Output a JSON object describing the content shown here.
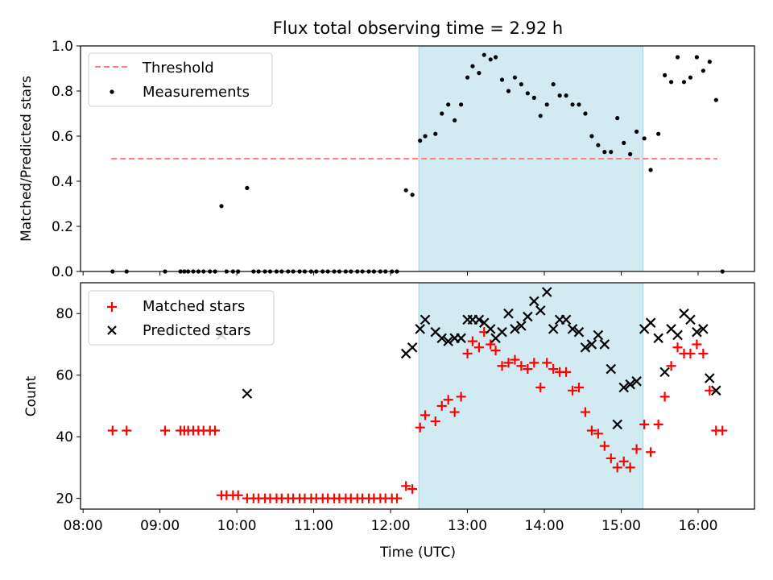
{
  "figure": {
    "title": "Flux total observing time = 2.92 h"
  },
  "colors": {
    "highlight": "#add8e6",
    "threshold": "#ff7f7f",
    "matched": "#ff0000",
    "predicted": "#000000",
    "measurement": "#000000"
  },
  "chart_data": [
    {
      "type": "scatter",
      "title": "Flux total observing time = 2.92 h",
      "ylabel": "Matched/Predicted stars",
      "xlabel": "",
      "ylim": [
        0,
        1.0
      ],
      "y_ticks": [
        "0.0",
        "0.2",
        "0.4",
        "0.6",
        "0.8",
        "1.0"
      ],
      "y_tick_values": [
        0,
        0.2,
        0.4,
        0.6,
        0.8,
        1.0
      ],
      "x_range": [
        "07:58",
        "16:44"
      ],
      "x_ticks": [
        "08:00",
        "09:00",
        "10:00",
        "11:00",
        "12:00",
        "13:00",
        "14:00",
        "15:00",
        "16:00"
      ],
      "highlight_span": [
        "12:22",
        "15:17"
      ],
      "legend": {
        "placement": "upper-left",
        "entries": [
          "Threshold",
          "Measurements"
        ]
      },
      "threshold": {
        "name": "Threshold",
        "y": 0.5,
        "x_from": "08:22",
        "x_to": "16:15"
      },
      "series": [
        {
          "name": "Measurements",
          "points": [
            [
              "08:23",
              0.0
            ],
            [
              "08:34",
              0.0
            ],
            [
              "09:04",
              0.0
            ],
            [
              "09:16",
              0.0
            ],
            [
              "09:19",
              0.0
            ],
            [
              "09:22",
              0.0
            ],
            [
              "09:26",
              0.0
            ],
            [
              "09:30",
              0.0
            ],
            [
              "09:34",
              0.0
            ],
            [
              "09:39",
              0.0
            ],
            [
              "09:43",
              0.0
            ],
            [
              "09:48",
              0.29
            ],
            [
              "09:52",
              0.0
            ],
            [
              "09:57",
              0.0
            ],
            [
              "10:01",
              0.0
            ],
            [
              "10:08",
              0.37
            ],
            [
              "10:13",
              0.0
            ],
            [
              "10:17",
              0.0
            ],
            [
              "10:22",
              0.0
            ],
            [
              "10:26",
              0.0
            ],
            [
              "10:31",
              0.0
            ],
            [
              "10:35",
              0.0
            ],
            [
              "10:40",
              0.0
            ],
            [
              "10:44",
              0.0
            ],
            [
              "10:49",
              0.0
            ],
            [
              "10:53",
              0.0
            ],
            [
              "10:58",
              0.0
            ],
            [
              "11:02",
              0.0
            ],
            [
              "11:07",
              0.0
            ],
            [
              "11:11",
              0.0
            ],
            [
              "11:16",
              0.0
            ],
            [
              "11:20",
              0.0
            ],
            [
              "11:25",
              0.0
            ],
            [
              "11:29",
              0.0
            ],
            [
              "11:34",
              0.0
            ],
            [
              "11:38",
              0.0
            ],
            [
              "11:43",
              0.0
            ],
            [
              "11:47",
              0.0
            ],
            [
              "11:52",
              0.0
            ],
            [
              "11:56",
              0.0
            ],
            [
              "12:01",
              0.0
            ],
            [
              "12:05",
              0.0
            ],
            [
              "12:12",
              0.36
            ],
            [
              "12:17",
              0.34
            ],
            [
              "12:23",
              0.58
            ],
            [
              "12:27",
              0.6
            ],
            [
              "12:35",
              0.61
            ],
            [
              "12:40",
              0.7
            ],
            [
              "12:45",
              0.74
            ],
            [
              "12:50",
              0.67
            ],
            [
              "12:55",
              0.74
            ],
            [
              "13:00",
              0.86
            ],
            [
              "13:04",
              0.91
            ],
            [
              "13:09",
              0.88
            ],
            [
              "13:13",
              0.96
            ],
            [
              "13:18",
              0.94
            ],
            [
              "13:22",
              0.95
            ],
            [
              "13:27",
              0.85
            ],
            [
              "13:32",
              0.8
            ],
            [
              "13:37",
              0.86
            ],
            [
              "13:42",
              0.83
            ],
            [
              "13:47",
              0.79
            ],
            [
              "13:52",
              0.77
            ],
            [
              "13:57",
              0.69
            ],
            [
              "14:02",
              0.74
            ],
            [
              "14:07",
              0.83
            ],
            [
              "14:12",
              0.78
            ],
            [
              "14:17",
              0.78
            ],
            [
              "14:22",
              0.74
            ],
            [
              "14:27",
              0.74
            ],
            [
              "14:32",
              0.7
            ],
            [
              "14:37",
              0.6
            ],
            [
              "14:42",
              0.56
            ],
            [
              "14:47",
              0.53
            ],
            [
              "14:52",
              0.53
            ],
            [
              "14:57",
              0.68
            ],
            [
              "15:02",
              0.57
            ],
            [
              "15:07",
              0.52
            ],
            [
              "15:12",
              0.62
            ],
            [
              "15:18",
              0.59
            ],
            [
              "15:23",
              0.45
            ],
            [
              "15:29",
              0.61
            ],
            [
              "15:34",
              0.87
            ],
            [
              "15:39",
              0.84
            ],
            [
              "15:44",
              0.95
            ],
            [
              "15:49",
              0.84
            ],
            [
              "15:54",
              0.86
            ],
            [
              "15:59",
              0.95
            ],
            [
              "16:04",
              0.89
            ],
            [
              "16:09",
              0.93
            ],
            [
              "16:14",
              0.76
            ],
            [
              "16:19",
              0.0
            ]
          ]
        }
      ]
    },
    {
      "type": "scatter",
      "title": "",
      "ylabel": "Count",
      "xlabel": "Time (UTC)",
      "ylim": [
        16.5,
        90
      ],
      "y_ticks": [
        "20",
        "40",
        "60",
        "80"
      ],
      "y_tick_values": [
        20,
        40,
        60,
        80
      ],
      "x_range": [
        "07:58",
        "16:44"
      ],
      "x_ticks": [
        "08:00",
        "09:00",
        "10:00",
        "11:00",
        "12:00",
        "13:00",
        "14:00",
        "15:00",
        "16:00"
      ],
      "highlight_span": [
        "12:22",
        "15:17"
      ],
      "legend": {
        "placement": "upper-left",
        "entries": [
          "Matched stars",
          "Predicted stars"
        ]
      },
      "series": [
        {
          "name": "Matched stars",
          "marker": "plus",
          "points": [
            [
              "08:23",
              42
            ],
            [
              "08:34",
              42
            ],
            [
              "09:04",
              42
            ],
            [
              "09:16",
              42
            ],
            [
              "09:19",
              42
            ],
            [
              "09:22",
              42
            ],
            [
              "09:26",
              42
            ],
            [
              "09:30",
              42
            ],
            [
              "09:34",
              42
            ],
            [
              "09:39",
              42
            ],
            [
              "09:43",
              42
            ],
            [
              "09:48",
              21
            ],
            [
              "09:52",
              21
            ],
            [
              "09:57",
              21
            ],
            [
              "10:01",
              21
            ],
            [
              "10:08",
              20
            ],
            [
              "10:13",
              20
            ],
            [
              "10:17",
              20
            ],
            [
              "10:22",
              20
            ],
            [
              "10:26",
              20
            ],
            [
              "10:31",
              20
            ],
            [
              "10:35",
              20
            ],
            [
              "10:40",
              20
            ],
            [
              "10:44",
              20
            ],
            [
              "10:49",
              20
            ],
            [
              "10:53",
              20
            ],
            [
              "10:58",
              20
            ],
            [
              "11:02",
              20
            ],
            [
              "11:07",
              20
            ],
            [
              "11:11",
              20
            ],
            [
              "11:16",
              20
            ],
            [
              "11:20",
              20
            ],
            [
              "11:25",
              20
            ],
            [
              "11:29",
              20
            ],
            [
              "11:34",
              20
            ],
            [
              "11:38",
              20
            ],
            [
              "11:43",
              20
            ],
            [
              "11:47",
              20
            ],
            [
              "11:52",
              20
            ],
            [
              "11:56",
              20
            ],
            [
              "12:01",
              20
            ],
            [
              "12:05",
              20
            ],
            [
              "12:12",
              24
            ],
            [
              "12:17",
              23
            ],
            [
              "12:23",
              43
            ],
            [
              "12:27",
              47
            ],
            [
              "12:35",
              45
            ],
            [
              "12:40",
              50
            ],
            [
              "12:45",
              52
            ],
            [
              "12:50",
              48
            ],
            [
              "12:55",
              53
            ],
            [
              "13:00",
              67
            ],
            [
              "13:04",
              71
            ],
            [
              "13:09",
              69
            ],
            [
              "13:13",
              74
            ],
            [
              "13:18",
              70
            ],
            [
              "13:22",
              68
            ],
            [
              "13:27",
              63
            ],
            [
              "13:32",
              64
            ],
            [
              "13:37",
              65
            ],
            [
              "13:42",
              63
            ],
            [
              "13:47",
              62
            ],
            [
              "13:52",
              64
            ],
            [
              "13:57",
              56
            ],
            [
              "14:02",
              64
            ],
            [
              "14:07",
              62
            ],
            [
              "14:12",
              61
            ],
            [
              "14:17",
              61
            ],
            [
              "14:22",
              55
            ],
            [
              "14:27",
              56
            ],
            [
              "14:32",
              48
            ],
            [
              "14:37",
              42
            ],
            [
              "14:42",
              41
            ],
            [
              "14:47",
              37
            ],
            [
              "14:52",
              33
            ],
            [
              "14:57",
              30
            ],
            [
              "15:02",
              32
            ],
            [
              "15:07",
              30
            ],
            [
              "15:12",
              36
            ],
            [
              "15:18",
              44
            ],
            [
              "15:23",
              35
            ],
            [
              "15:29",
              44
            ],
            [
              "15:34",
              53
            ],
            [
              "15:39",
              63
            ],
            [
              "15:44",
              69
            ],
            [
              "15:49",
              67
            ],
            [
              "15:54",
              67
            ],
            [
              "15:59",
              70
            ],
            [
              "16:04",
              67
            ],
            [
              "16:09",
              55
            ],
            [
              "16:14",
              42
            ],
            [
              "16:19",
              42
            ]
          ]
        },
        {
          "name": "Predicted stars",
          "marker": "x",
          "points": [
            [
              "09:48",
              73
            ],
            [
              "10:08",
              54
            ],
            [
              "12:12",
              67
            ],
            [
              "12:17",
              69
            ],
            [
              "12:23",
              75
            ],
            [
              "12:27",
              78
            ],
            [
              "12:35",
              74
            ],
            [
              "12:40",
              72
            ],
            [
              "12:45",
              71
            ],
            [
              "12:50",
              72
            ],
            [
              "12:55",
              72
            ],
            [
              "13:00",
              78
            ],
            [
              "13:04",
              78
            ],
            [
              "13:09",
              78
            ],
            [
              "13:13",
              77
            ],
            [
              "13:18",
              75
            ],
            [
              "13:22",
              72
            ],
            [
              "13:27",
              74
            ],
            [
              "13:32",
              80
            ],
            [
              "13:37",
              75
            ],
            [
              "13:42",
              76
            ],
            [
              "13:47",
              79
            ],
            [
              "13:52",
              84
            ],
            [
              "13:57",
              81
            ],
            [
              "14:02",
              87
            ],
            [
              "14:07",
              75
            ],
            [
              "14:12",
              78
            ],
            [
              "14:17",
              78
            ],
            [
              "14:22",
              75
            ],
            [
              "14:27",
              74
            ],
            [
              "14:32",
              69
            ],
            [
              "14:37",
              70
            ],
            [
              "14:42",
              73
            ],
            [
              "14:47",
              70
            ],
            [
              "14:52",
              62
            ],
            [
              "14:57",
              44
            ],
            [
              "15:02",
              56
            ],
            [
              "15:07",
              57
            ],
            [
              "15:12",
              58
            ],
            [
              "15:18",
              75
            ],
            [
              "15:23",
              77
            ],
            [
              "15:29",
              72
            ],
            [
              "15:34",
              61
            ],
            [
              "15:39",
              75
            ],
            [
              "15:44",
              73
            ],
            [
              "15:49",
              80
            ],
            [
              "15:54",
              78
            ],
            [
              "15:59",
              74
            ],
            [
              "16:04",
              75
            ],
            [
              "16:09",
              59
            ],
            [
              "16:14",
              55
            ]
          ]
        }
      ]
    }
  ]
}
